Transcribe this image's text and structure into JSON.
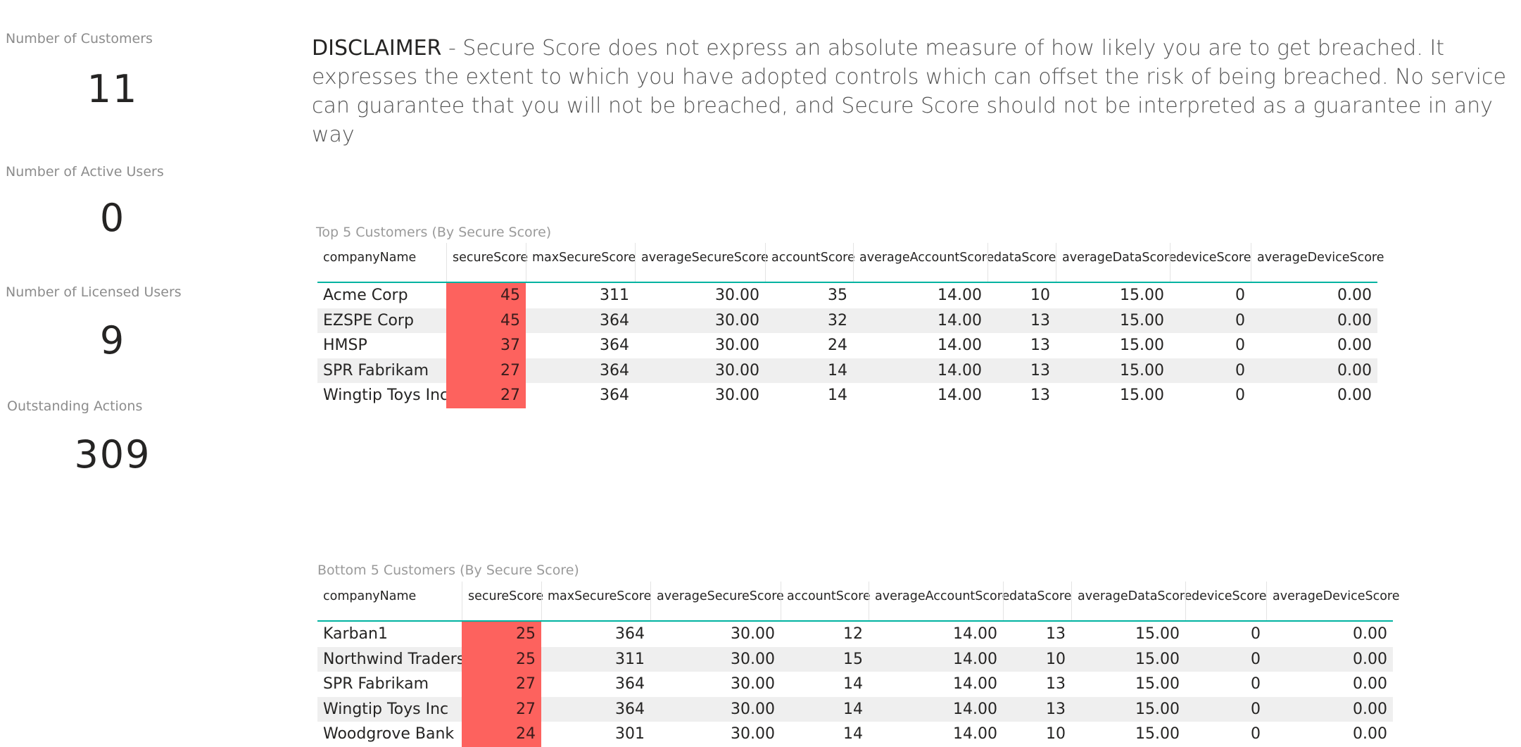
{
  "kpis": [
    {
      "label": "Number of Customers",
      "value": "11"
    },
    {
      "label": "Number of Active Users",
      "value": "0"
    },
    {
      "label": "Number of Licensed Users",
      "value": "9"
    },
    {
      "label": "Outstanding Actions",
      "value": "309"
    }
  ],
  "disclaimer": {
    "heading": "DISCLAIMER",
    "text": " - Secure Score does not express an absolute measure of how likely you are to get breached. It expresses the extent to which you have adopted controls which can offset the risk of being breached. No service can guarantee that you will not be breached, and Secure Score should not be interpreted as a guarantee in any way"
  },
  "columns": [
    "companyName",
    "secureScore",
    "maxSecureScore",
    "averageSecureScore",
    "accountScore",
    "averageAccountScore",
    "dataScore",
    "averageDataScore",
    "deviceScore",
    "averageDeviceScore"
  ],
  "top5": {
    "title": "Top 5 Customers (By Secure Score)",
    "rows": [
      [
        "Acme Corp",
        "45",
        "311",
        "30.00",
        "35",
        "14.00",
        "10",
        "15.00",
        "0",
        "0.00"
      ],
      [
        "EZSPE Corp",
        "45",
        "364",
        "30.00",
        "32",
        "14.00",
        "13",
        "15.00",
        "0",
        "0.00"
      ],
      [
        "HMSP",
        "37",
        "364",
        "30.00",
        "24",
        "14.00",
        "13",
        "15.00",
        "0",
        "0.00"
      ],
      [
        "SPR Fabrikam",
        "27",
        "364",
        "30.00",
        "14",
        "14.00",
        "13",
        "15.00",
        "0",
        "0.00"
      ],
      [
        "Wingtip Toys Inc",
        "27",
        "364",
        "30.00",
        "14",
        "14.00",
        "13",
        "15.00",
        "0",
        "0.00"
      ]
    ]
  },
  "bottom5": {
    "title": "Bottom 5 Customers (By Secure Score)",
    "rows": [
      [
        "Karban1",
        "25",
        "364",
        "30.00",
        "12",
        "14.00",
        "13",
        "15.00",
        "0",
        "0.00"
      ],
      [
        "Northwind Traders",
        "25",
        "311",
        "30.00",
        "15",
        "14.00",
        "10",
        "15.00",
        "0",
        "0.00"
      ],
      [
        "SPR Fabrikam",
        "27",
        "364",
        "30.00",
        "14",
        "14.00",
        "13",
        "15.00",
        "0",
        "0.00"
      ],
      [
        "Wingtip Toys Inc",
        "27",
        "364",
        "30.00",
        "14",
        "14.00",
        "13",
        "15.00",
        "0",
        "0.00"
      ],
      [
        "Woodgrove Bank",
        "24",
        "301",
        "30.00",
        "14",
        "14.00",
        "10",
        "15.00",
        "0",
        "0.00"
      ]
    ]
  },
  "colors": {
    "accent": "#00b3a1",
    "score_bg": "#fd625e",
    "alt_row": "#efefef"
  }
}
